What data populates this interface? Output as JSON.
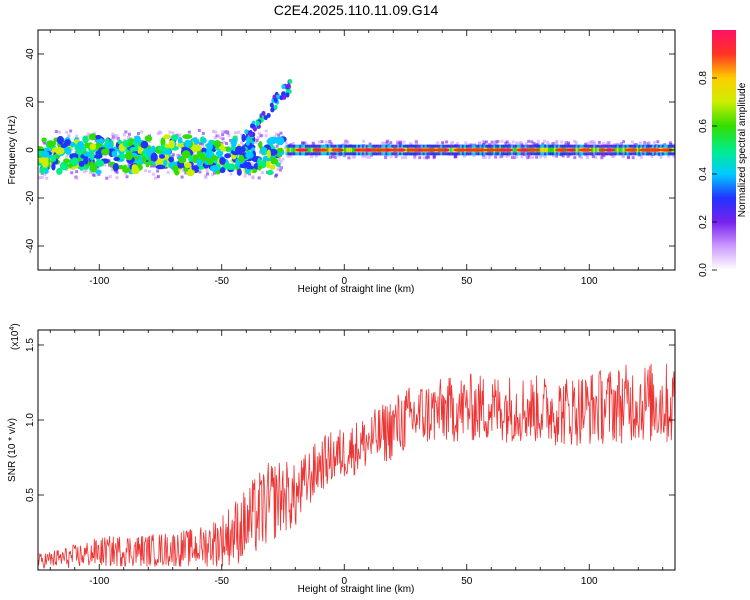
{
  "title": "C2E4.2025.110.11.09.G14",
  "colors": {
    "snr_line": "#ee3333",
    "frame": "#000000",
    "background": "#ffffff"
  },
  "chart_data": [
    {
      "type": "heatmap",
      "xlabel": "Height of straight line (km)",
      "ylabel": "Frequency (Hz)",
      "xlim": [
        -125,
        135
      ],
      "ylim": [
        -50,
        50
      ],
      "x_ticks": [
        -100,
        -50,
        0,
        50,
        100
      ],
      "y_ticks": [
        -40,
        -20,
        0,
        20,
        40
      ],
      "colorbar": {
        "label": "Normalized spectral amplitude",
        "range": [
          0,
          1
        ],
        "ticks": [
          "0.0",
          "0.2",
          "0.4",
          "0.6",
          "0.8"
        ],
        "colormap": [
          "#ffffff",
          "#cc99ff",
          "#7722ee",
          "#2233ff",
          "#00ccff",
          "#00ee88",
          "#33dd00",
          "#ccee00",
          "#ffcc00",
          "#ff3322",
          "#ff1166"
        ]
      },
      "features": [
        {
          "x_range": [
            -125,
            -25
          ],
          "frequency_center": -2,
          "frequency_spread": 8,
          "description": "broad scattered band, mostly low amplitude (0.2-0.6)"
        },
        {
          "x_range": [
            -40,
            -22
          ],
          "frequency_range": [
            5,
            30
          ],
          "description": "rising tail reaching about 30 Hz near -23 km"
        },
        {
          "x_range": [
            -22,
            135
          ],
          "frequency_center": 0,
          "frequency_spread": 2,
          "description": "narrow stable band near 0 Hz with peaks up to ~0.95"
        }
      ]
    },
    {
      "type": "line",
      "xlabel": "Height of straight line (km)",
      "ylabel": "SNR (10 * v/v)",
      "y_multiplier": "(x10",
      "y_multiplier_exp": "4",
      "multiplier_close": ")",
      "xlim": [
        -125,
        135
      ],
      "ylim": [
        0,
        16000
      ],
      "x_ticks": [
        -100,
        -50,
        0,
        50,
        100
      ],
      "y_ticks": [
        5000,
        10000,
        15000
      ],
      "y_tick_labels": [
        "0.5",
        "1.0",
        "1.5"
      ],
      "series": [
        {
          "x": [
            -125,
            -110,
            -100,
            -90,
            -80,
            -70,
            -60,
            -50,
            -45,
            -40,
            -35,
            -30,
            -25,
            -20,
            -15,
            -10,
            -5,
            0,
            5,
            10,
            15,
            20,
            25,
            30,
            40,
            50,
            60,
            70,
            80,
            90,
            100,
            110,
            120,
            130,
            135
          ],
          "y": [
            600,
            900,
            1200,
            1300,
            1300,
            1400,
            1500,
            2000,
            2500,
            3000,
            3800,
            4500,
            5000,
            4800,
            6000,
            7000,
            7500,
            7800,
            8200,
            8600,
            9000,
            9500,
            10000,
            10300,
            10600,
            10800,
            10800,
            10800,
            10700,
            10600,
            10800,
            11000,
            11200,
            11100,
            11000
          ],
          "noise_amplitude": [
            500,
            800,
            1000,
            1100,
            1100,
            1200,
            1300,
            1800,
            2200,
            2500,
            2800,
            2800,
            2500,
            2200,
            2000,
            1800,
            1800,
            1800,
            1800,
            1900,
            2000,
            2200,
            2200,
            2200,
            2200,
            2300,
            2300,
            2300,
            2300,
            2400,
            2500,
            2600,
            2700,
            2800,
            2800
          ]
        }
      ]
    }
  ]
}
